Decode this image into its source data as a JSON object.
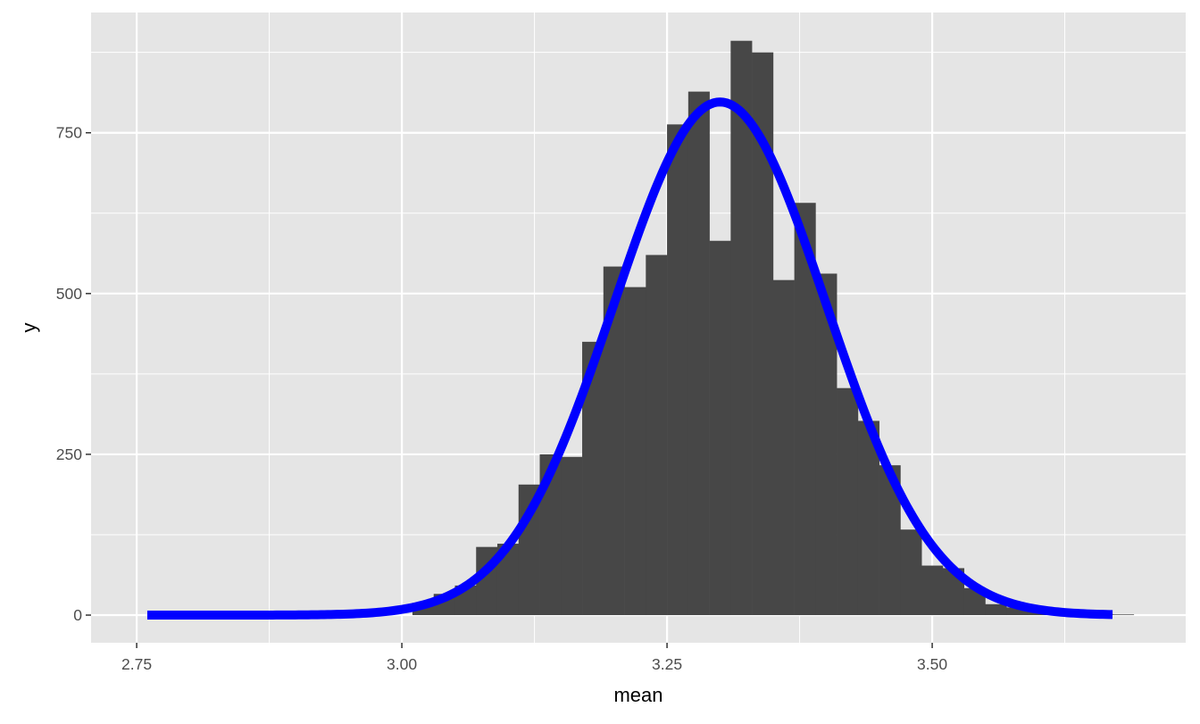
{
  "chart_data": {
    "type": "bar",
    "subtype": "histogram with overlaid normal density curve",
    "title": "",
    "xlabel": "mean",
    "ylabel": "y",
    "xlim": [
      2.707,
      3.739
    ],
    "ylim": [
      -43,
      937
    ],
    "x_ticks": [
      "2.75",
      "3.00",
      "3.25",
      "3.50"
    ],
    "x_tick_values": [
      2.75,
      3.0,
      3.25,
      3.5
    ],
    "y_ticks": [
      "0",
      "250",
      "500",
      "750"
    ],
    "y_tick_values": [
      0,
      250,
      500,
      750
    ],
    "grid": true,
    "bin_width": 0.02,
    "bin_start": 3.01,
    "counts": [
      19,
      33,
      46,
      106,
      111,
      203,
      250,
      246,
      425,
      542,
      510,
      560,
      763,
      814,
      582,
      893,
      875,
      521,
      641,
      531,
      353,
      302,
      233,
      133,
      77,
      73,
      42,
      17,
      12,
      8,
      5,
      3,
      2,
      1
    ],
    "curve": {
      "type": "normal",
      "mean": 3.3,
      "sd": 0.1,
      "n": 10000,
      "x_range": [
        2.76,
        3.67
      ]
    },
    "colors": {
      "panel": "#E5E5E5",
      "grid": "#FFFFFF",
      "bars": "#474747",
      "curve": "#0000FF"
    }
  }
}
